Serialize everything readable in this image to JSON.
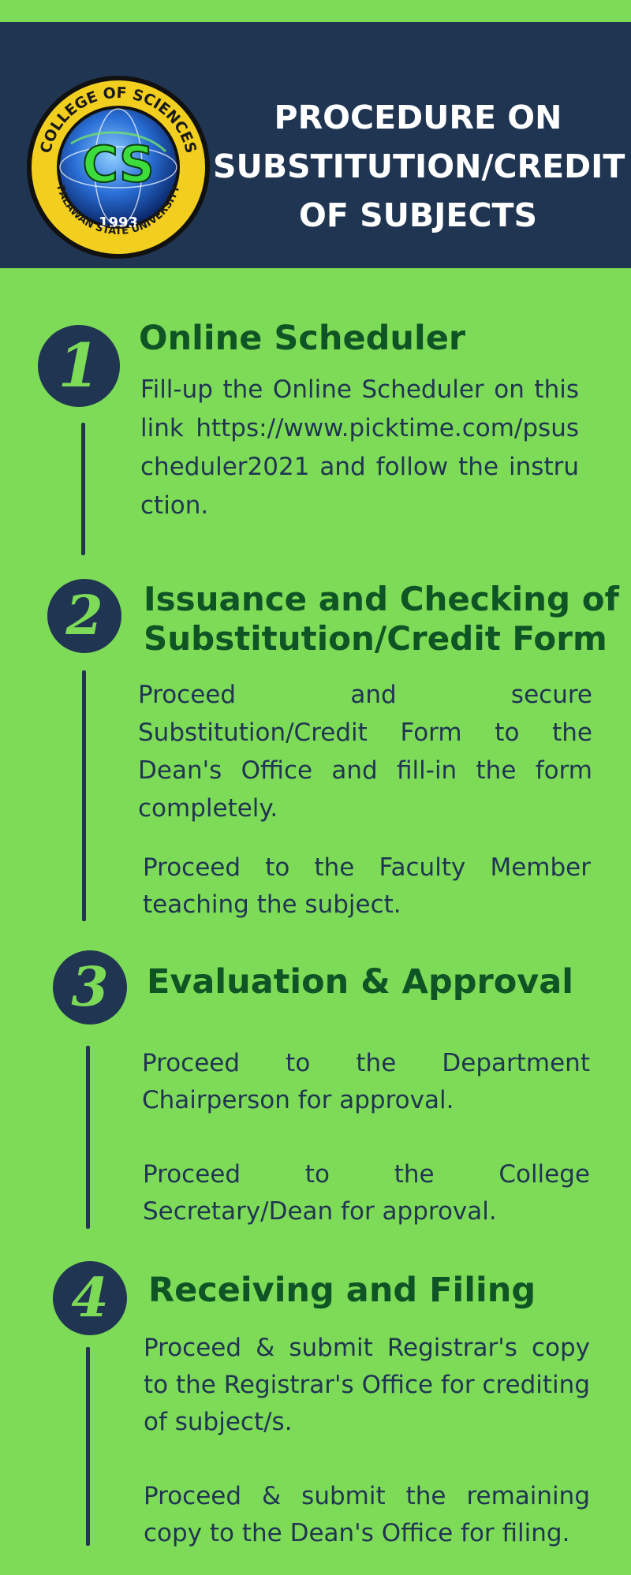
{
  "header": {
    "title_line1": "PROCEDURE ON",
    "title_line2": "SUBSTITUTION/CREDIT",
    "title_line3": "OF SUBJECTS",
    "bg_color": "#1f3552",
    "text_color": "#ffffff"
  },
  "logo": {
    "top_text": "COLLEGE OF SCIENCES",
    "bottom_text": "PALAWAN STATE UNIVERSITY",
    "letters": "CS",
    "year": "1993"
  },
  "colors": {
    "background": "#7edb57",
    "navy": "#1f3552",
    "title_green": "#0f5424"
  },
  "steps": [
    {
      "number": "1",
      "title": "Online Scheduler",
      "paragraphs": [
        "Fill-up the Online Scheduler on this link https://www.picktime.com/psuscheduler2021 and follow the instruction."
      ]
    },
    {
      "number": "2",
      "title_line1": "Issuance and Checking of",
      "title_line2": "Substitution/Credit Form",
      "paragraphs": [
        "Proceed and secure Substitution/Credit Form to the Dean's Office and fill-in the form completely.",
        "Proceed to the Faculty Member teaching the subject."
      ]
    },
    {
      "number": "3",
      "title": "Evaluation & Approval",
      "paragraphs": [
        "Proceed to the Department Chairperson for approval.",
        "Proceed to the College Secretary/Dean for approval."
      ]
    },
    {
      "number": "4",
      "title": "Receiving and Filing",
      "paragraphs": [
        "Proceed & submit Registrar's copy to the Registrar's Office for crediting of subject/s.",
        "Proceed & submit the remaining copy to the Dean's Office for filing."
      ]
    }
  ]
}
